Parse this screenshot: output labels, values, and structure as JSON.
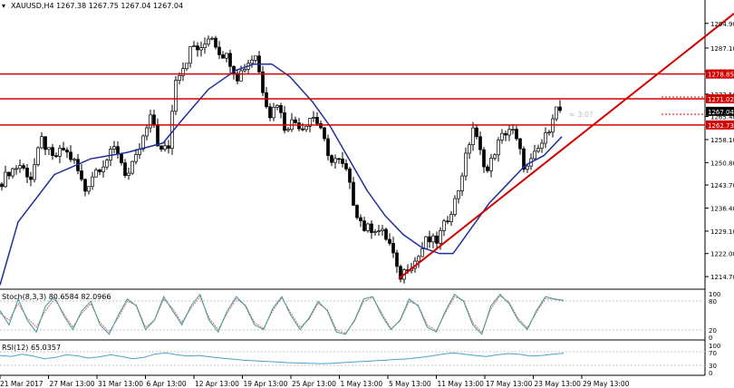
{
  "symbol_header": "XAUUSD,H4  1267.38 1267.75 1267.04 1267.04",
  "menu_glyph": "▾",
  "colors": {
    "bull_candle": "#ffffff",
    "bear_candle": "#000000",
    "ma_line": "#1e2f9e",
    "resistance": "#d40000",
    "trendline": "#d40000",
    "stoch_main": "#3a9a9a",
    "stoch_signal": "#d26a6a",
    "rsi_line": "#4aa3c8",
    "price_marker_bg": "#000000"
  },
  "price_axis": {
    "ticks": [
      "1294.90",
      "1287.10",
      "1279.80",
      "1272.50",
      "1265.40",
      "1258.10",
      "1250.80",
      "1243.70",
      "1236.40",
      "1229.10",
      "1222.00",
      "1214.70"
    ],
    "labels": [
      {
        "text": "1278.85",
        "kind": "resistance"
      },
      {
        "text": "1271.02",
        "kind": "resistance"
      },
      {
        "text": "1267.04",
        "kind": "current"
      },
      {
        "text": "1262.73",
        "kind": "resistance"
      }
    ],
    "hidden_label": "≈ 3:0?"
  },
  "stoch": {
    "title": "Stoch(8,3,3) 80.6584 82.0966",
    "levels": [
      "100",
      "80",
      "20",
      "0"
    ]
  },
  "rsi": {
    "title": "RSI(12) 65.0357",
    "levels": [
      "100",
      "70",
      "30",
      "0"
    ]
  },
  "time_axis": [
    "21 Mar 2017",
    "27 Mar 13:00",
    "31 Mar 13:00",
    "6 Apr 13:00",
    "12 Apr 13:00",
    "19 Apr 13:00",
    "25 Apr 13:00",
    "1 May 13:00",
    "5 May 13:00",
    "11 May 13:00",
    "17 May 13:00",
    "23 May 13:00",
    "29 May 13:00"
  ],
  "chart_data": {
    "type": "candlestick",
    "symbol": "XAUUSD",
    "timeframe": "H4",
    "title": "XAUUSD,H4  1267.38 1267.75 1267.04 1267.04",
    "ylim": [
      1211,
      1300
    ],
    "horizontal_lines": [
      1278.85,
      1271.02,
      1262.73
    ],
    "current_price": 1267.04,
    "close_path": [
      [
        0,
        1244
      ],
      [
        10,
        1248
      ],
      [
        22,
        1250
      ],
      [
        34,
        1246
      ],
      [
        46,
        1258
      ],
      [
        58,
        1252
      ],
      [
        70,
        1255
      ],
      [
        82,
        1251
      ],
      [
        94,
        1242
      ],
      [
        104,
        1248
      ],
      [
        116,
        1251
      ],
      [
        128,
        1256
      ],
      [
        140,
        1246
      ],
      [
        150,
        1252
      ],
      [
        160,
        1260
      ],
      [
        168,
        1266
      ],
      [
        176,
        1254
      ],
      [
        186,
        1256
      ],
      [
        194,
        1278
      ],
      [
        204,
        1282
      ],
      [
        212,
        1288
      ],
      [
        222,
        1286
      ],
      [
        232,
        1292
      ],
      [
        242,
        1286
      ],
      [
        252,
        1284
      ],
      [
        262,
        1278
      ],
      [
        272,
        1282
      ],
      [
        282,
        1285
      ],
      [
        290,
        1274
      ],
      [
        298,
        1266
      ],
      [
        306,
        1270
      ],
      [
        314,
        1262
      ],
      [
        324,
        1264
      ],
      [
        334,
        1262
      ],
      [
        344,
        1266
      ],
      [
        354,
        1262
      ],
      [
        362,
        1252
      ],
      [
        372,
        1252
      ],
      [
        382,
        1248
      ],
      [
        392,
        1236
      ],
      [
        402,
        1230
      ],
      [
        414,
        1230
      ],
      [
        424,
        1228
      ],
      [
        432,
        1224
      ],
      [
        440,
        1214
      ],
      [
        450,
        1218
      ],
      [
        460,
        1220
      ],
      [
        470,
        1226
      ],
      [
        482,
        1226
      ],
      [
        492,
        1232
      ],
      [
        504,
        1240
      ],
      [
        512,
        1250
      ],
      [
        522,
        1262
      ],
      [
        530,
        1254
      ],
      [
        538,
        1248
      ],
      [
        548,
        1256
      ],
      [
        556,
        1260
      ],
      [
        564,
        1262
      ],
      [
        572,
        1256
      ],
      [
        580,
        1248
      ],
      [
        588,
        1252
      ],
      [
        596,
        1256
      ],
      [
        604,
        1260
      ],
      [
        612,
        1268
      ],
      [
        620,
        1267
      ]
    ],
    "moving_average": [
      [
        0,
        1212
      ],
      [
        20,
        1232
      ],
      [
        60,
        1247
      ],
      [
        100,
        1252
      ],
      [
        140,
        1254
      ],
      [
        180,
        1257
      ],
      [
        200,
        1264
      ],
      [
        230,
        1274
      ],
      [
        260,
        1280
      ],
      [
        280,
        1282
      ],
      [
        300,
        1282
      ],
      [
        320,
        1278
      ],
      [
        345,
        1270
      ],
      [
        365,
        1262
      ],
      [
        385,
        1252
      ],
      [
        405,
        1242
      ],
      [
        425,
        1234
      ],
      [
        445,
        1228
      ],
      [
        465,
        1224
      ],
      [
        485,
        1222
      ],
      [
        500,
        1222
      ],
      [
        520,
        1230
      ],
      [
        540,
        1238
      ],
      [
        560,
        1244
      ],
      [
        580,
        1250
      ],
      [
        600,
        1253
      ],
      [
        620,
        1259
      ]
    ],
    "trendline": {
      "from": [
        440,
        1214
      ],
      "to": [
        810,
        1298
      ]
    },
    "stochastic": {
      "main": [
        60,
        30,
        85,
        40,
        15,
        70,
        90,
        50,
        20,
        60,
        80,
        30,
        10,
        50,
        85,
        70,
        20,
        40,
        90,
        60,
        30,
        70,
        95,
        40,
        15,
        60,
        90,
        70,
        30,
        20,
        65,
        90,
        50,
        20,
        45,
        80,
        60,
        15,
        10,
        40,
        85,
        90,
        50,
        20,
        40,
        85,
        70,
        25,
        15,
        60,
        95,
        80,
        30,
        10,
        70,
        95,
        75,
        40,
        20,
        60,
        90,
        85,
        82
      ],
      "signal": [
        55,
        40,
        75,
        45,
        25,
        60,
        85,
        55,
        25,
        55,
        75,
        35,
        15,
        45,
        80,
        72,
        25,
        40,
        85,
        65,
        35,
        65,
        90,
        45,
        20,
        55,
        85,
        72,
        35,
        22,
        60,
        88,
        55,
        25,
        42,
        76,
        62,
        20,
        12,
        38,
        80,
        88,
        55,
        22,
        38,
        80,
        72,
        30,
        18,
        56,
        90,
        82,
        35,
        14,
        64,
        92,
        78,
        44,
        24,
        56,
        86,
        84,
        82
      ]
    },
    "rsi": [
      58,
      55,
      62,
      56,
      48,
      52,
      60,
      57,
      50,
      54,
      60,
      55,
      48,
      52,
      62,
      66,
      60,
      56,
      58,
      54,
      50,
      47,
      44,
      42,
      40,
      38,
      36,
      35,
      34,
      33,
      34,
      36,
      38,
      40,
      42,
      44,
      46,
      48,
      52,
      56,
      62,
      66,
      62,
      58,
      55,
      60,
      64,
      62,
      56,
      58,
      62,
      65
    ]
  }
}
